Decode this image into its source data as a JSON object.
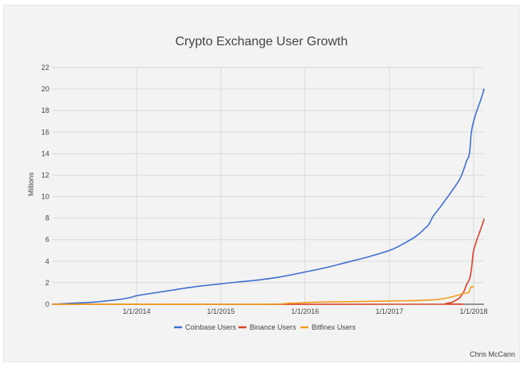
{
  "chart_data": {
    "type": "line",
    "title": "Crypto Exchange User Growth",
    "xlabel": "",
    "ylabel": "Millions",
    "ylim": [
      0,
      22
    ],
    "yticks": [
      "0",
      "2",
      "4",
      "6",
      "8",
      "10",
      "12",
      "14",
      "16",
      "18",
      "20",
      "22"
    ],
    "xlim": [
      "2013-01-01",
      "2018-02-15"
    ],
    "xticks": [
      {
        "date": "2014-01-01",
        "label": "1/1/2014"
      },
      {
        "date": "2015-01-01",
        "label": "1/1/2015"
      },
      {
        "date": "2016-01-01",
        "label": "1/1/2016"
      },
      {
        "date": "2017-01-01",
        "label": "1/1/2017"
      },
      {
        "date": "2018-01-01",
        "label": "1/1/2018"
      }
    ],
    "grid": true,
    "legend_position": "bottom",
    "series": [
      {
        "name": "Coinbase Users",
        "color": "#3f6fd0",
        "points": [
          [
            "2013-01-01",
            0.0
          ],
          [
            "2013-04-01",
            0.1
          ],
          [
            "2013-07-01",
            0.2
          ],
          [
            "2013-10-01",
            0.4
          ],
          [
            "2013-12-01",
            0.6
          ],
          [
            "2014-01-01",
            0.8
          ],
          [
            "2014-03-01",
            1.0
          ],
          [
            "2014-06-01",
            1.3
          ],
          [
            "2014-09-01",
            1.6
          ],
          [
            "2015-01-01",
            1.9
          ],
          [
            "2015-04-01",
            2.1
          ],
          [
            "2015-07-01",
            2.3
          ],
          [
            "2015-10-01",
            2.6
          ],
          [
            "2016-01-01",
            3.0
          ],
          [
            "2016-04-01",
            3.4
          ],
          [
            "2016-07-01",
            3.9
          ],
          [
            "2016-10-01",
            4.4
          ],
          [
            "2017-01-01",
            5.0
          ],
          [
            "2017-03-01",
            5.6
          ],
          [
            "2017-05-01",
            6.4
          ],
          [
            "2017-06-01",
            7.0
          ],
          [
            "2017-06-20",
            7.4
          ],
          [
            "2017-07-10",
            8.2
          ],
          [
            "2017-08-01",
            8.8
          ],
          [
            "2017-09-01",
            9.7
          ],
          [
            "2017-10-01",
            10.6
          ],
          [
            "2017-11-01",
            11.6
          ],
          [
            "2017-11-20",
            12.6
          ],
          [
            "2017-12-01",
            13.3
          ],
          [
            "2017-12-10",
            13.7
          ],
          [
            "2017-12-15",
            14.2
          ],
          [
            "2017-12-22",
            16.0
          ],
          [
            "2018-01-01",
            17.0
          ],
          [
            "2018-01-15",
            18.0
          ],
          [
            "2018-02-01",
            19.0
          ],
          [
            "2018-02-15",
            20.0
          ]
        ]
      },
      {
        "name": "Binance Users",
        "color": "#d4442b",
        "points": [
          [
            "2013-01-01",
            0.0
          ],
          [
            "2017-07-01",
            0.0
          ],
          [
            "2017-09-01",
            0.05
          ],
          [
            "2017-10-01",
            0.2
          ],
          [
            "2017-11-01",
            0.6
          ],
          [
            "2017-11-20",
            1.2
          ],
          [
            "2017-12-01",
            1.8
          ],
          [
            "2017-12-15",
            2.4
          ],
          [
            "2017-12-22",
            3.2
          ],
          [
            "2017-12-28",
            4.4
          ],
          [
            "2018-01-01",
            5.0
          ],
          [
            "2018-01-15",
            6.0
          ],
          [
            "2018-02-01",
            7.0
          ],
          [
            "2018-02-15",
            7.9
          ]
        ]
      },
      {
        "name": "Bitfinex Users",
        "color": "#f39c1c",
        "points": [
          [
            "2013-01-01",
            0.0
          ],
          [
            "2015-06-01",
            0.0
          ],
          [
            "2015-11-01",
            0.1
          ],
          [
            "2016-03-01",
            0.2
          ],
          [
            "2016-09-01",
            0.25
          ],
          [
            "2017-01-01",
            0.3
          ],
          [
            "2017-05-01",
            0.35
          ],
          [
            "2017-08-01",
            0.45
          ],
          [
            "2017-10-01",
            0.7
          ],
          [
            "2017-11-15",
            1.0
          ],
          [
            "2017-12-10",
            1.1
          ],
          [
            "2017-12-20",
            1.6
          ],
          [
            "2018-01-01",
            1.6
          ]
        ]
      }
    ]
  },
  "credit": "Chris McCann"
}
